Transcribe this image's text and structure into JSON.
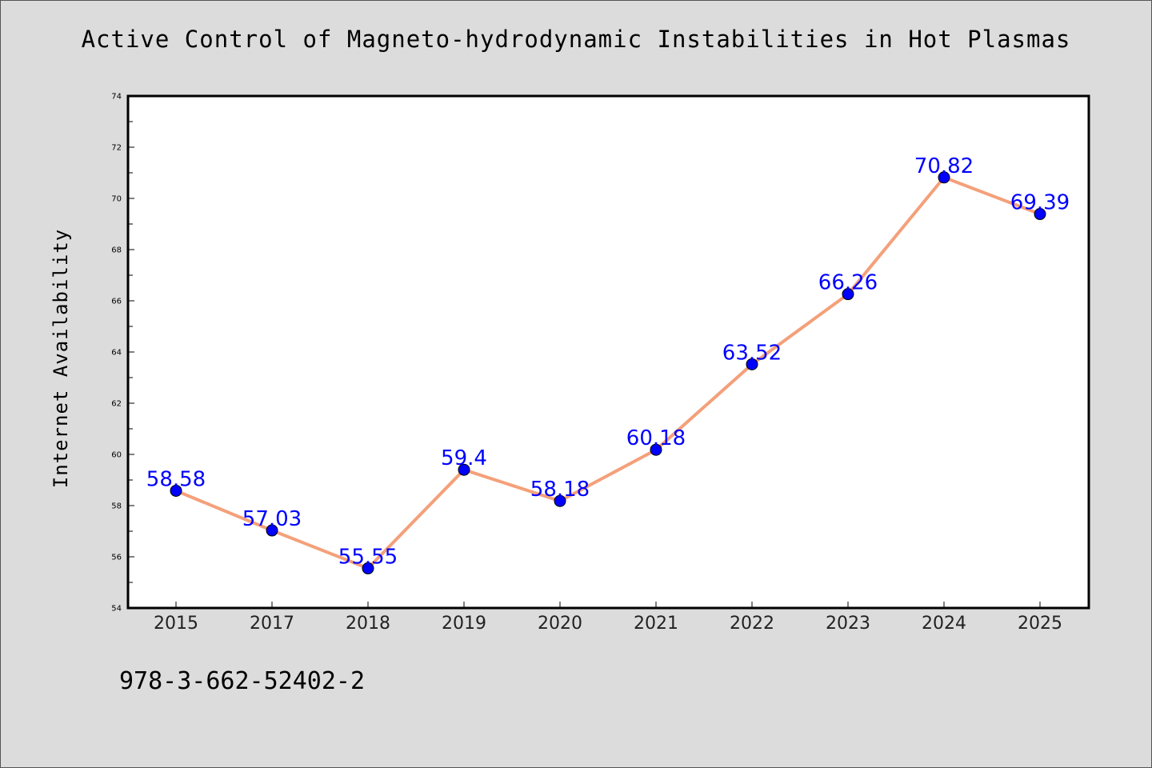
{
  "isbn_text": "978-3-662-52402-2",
  "colors": {
    "background": "#dcdcdc",
    "plot_background": "#ffffff",
    "line": "#f4a07a",
    "marker": "#0000ff",
    "data_label": "#0000ff"
  },
  "chart_data": {
    "type": "line",
    "title": "Active Control of Magneto-hydrodynamic Instabilities in Hot Plasmas",
    "xlabel": "",
    "ylabel": "Internet Availability",
    "categories": [
      "2015",
      "2017",
      "2018",
      "2019",
      "2020",
      "2021",
      "2022",
      "2023",
      "2024",
      "2025"
    ],
    "series": [
      {
        "values": [
          58.58,
          57.03,
          55.55,
          59.4,
          58.18,
          60.18,
          63.52,
          66.26,
          70.82,
          69.39
        ],
        "data_labels": [
          "58.58",
          "57.03",
          "55.55",
          "59.4",
          "58.18",
          "60.18",
          "63.52",
          "66.26",
          "70.82",
          "69.39"
        ]
      }
    ],
    "ylim": [
      54,
      74
    ],
    "yticks": [
      "54",
      "56",
      "58",
      "60",
      "62",
      "64",
      "66",
      "68",
      "70",
      "72",
      "74"
    ],
    "grid": false,
    "legend": "none",
    "marker": "circle"
  }
}
